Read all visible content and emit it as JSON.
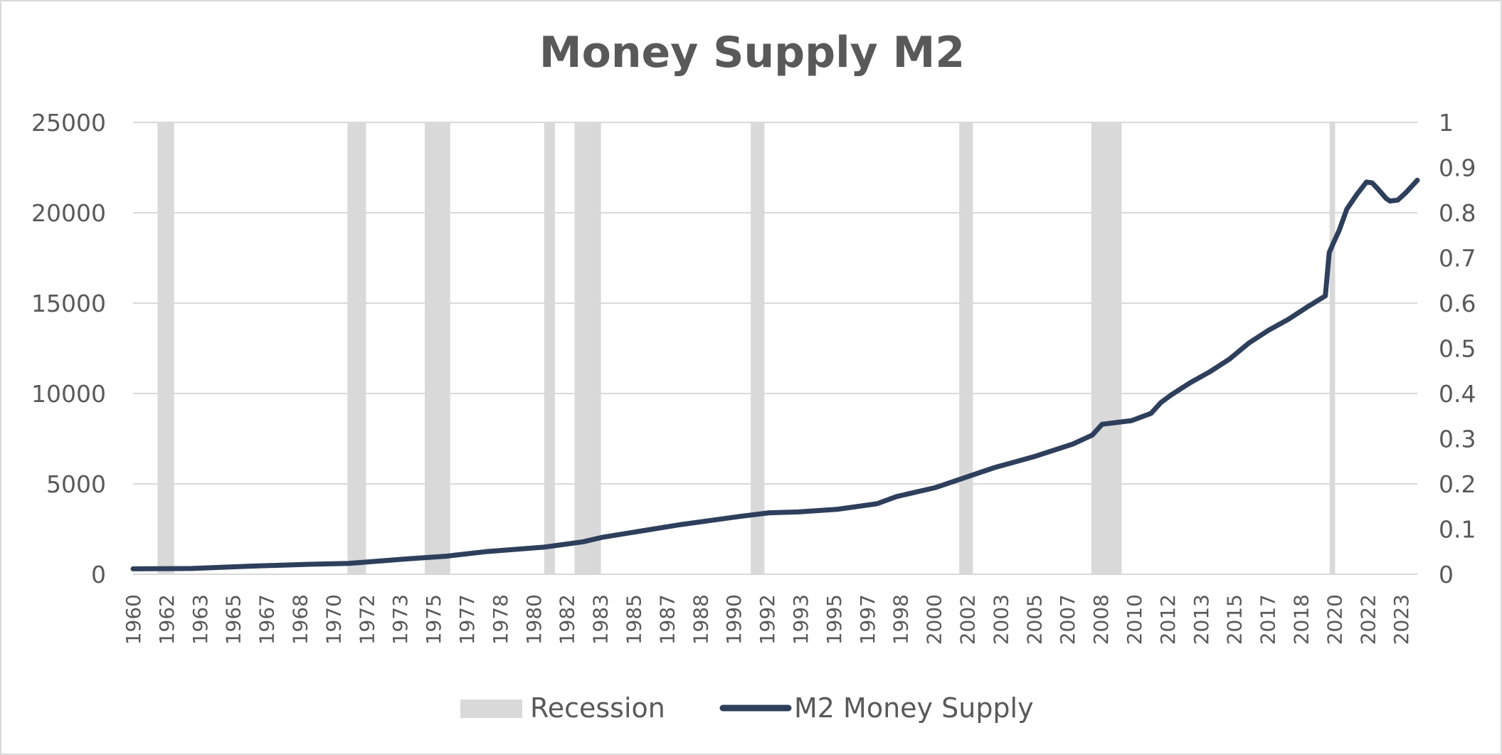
{
  "chart_data": {
    "type": "line",
    "title": "Money Supply M2",
    "xlabel": "",
    "ylabel": "",
    "x_range": [
      1959.0,
      2024.6
    ],
    "ylim": [
      0,
      25000
    ],
    "y_ticks": [
      0,
      5000,
      10000,
      15000,
      20000,
      25000
    ],
    "y2lim": [
      0,
      1
    ],
    "y2_ticks": [
      "0",
      "0.1",
      "0.2",
      "0.3",
      "0.4",
      "0.5",
      "0.6",
      "0.7",
      "0.8",
      "0.9",
      "1"
    ],
    "x_tick_labels": [
      "1960",
      "1962",
      "1963",
      "1965",
      "1967",
      "1968",
      "1970",
      "1972",
      "1973",
      "1975",
      "1977",
      "1978",
      "1980",
      "1982",
      "1983",
      "1985",
      "1987",
      "1988",
      "1990",
      "1992",
      "1993",
      "1995",
      "1997",
      "1998",
      "2000",
      "2002",
      "2003",
      "2005",
      "2007",
      "2008",
      "2010",
      "2012",
      "2013",
      "2015",
      "2017",
      "2018",
      "2020",
      "2022",
      "2023"
    ],
    "grid": true,
    "legend_position": "bottom",
    "colors": {
      "line": "#2e3f5c",
      "recession": "#d9d9d9",
      "grid": "#d9d9d9",
      "text": "#595959"
    },
    "series": [
      {
        "name": "Recession",
        "type": "area",
        "axis": "secondary",
        "periods": [
          [
            1960.25,
            1961.1
          ],
          [
            1969.95,
            1970.9
          ],
          [
            1973.9,
            1975.2
          ],
          [
            1980.0,
            1980.55
          ],
          [
            1981.55,
            1982.9
          ],
          [
            1990.55,
            1991.25
          ],
          [
            2001.2,
            2001.9
          ],
          [
            2007.95,
            2009.5
          ],
          [
            2020.12,
            2020.4
          ]
        ]
      },
      {
        "name": "M2 Money Supply",
        "type": "line",
        "axis": "primary",
        "x": [
          1959.0,
          1962,
          1965,
          1968,
          1970,
          1973,
          1975,
          1977,
          1980,
          1982,
          1983,
          1985,
          1987,
          1988,
          1990,
          1991.5,
          1993,
          1995,
          1997,
          1998,
          2000,
          2001.5,
          2003,
          2004,
          2005,
          2007,
          2008,
          2008.5,
          2010,
          2011,
          2011.5,
          2012,
          2013,
          2014,
          2015,
          2016,
          2017,
          2018,
          2019,
          2019.9,
          2020.1,
          2020.3,
          2020.6,
          2021,
          2021.5,
          2022,
          2022.3,
          2022.6,
          2023,
          2023.2,
          2023.6,
          2024,
          2024.6
        ],
        "y": [
          300,
          320,
          450,
          550,
          600,
          850,
          1000,
          1250,
          1500,
          1800,
          2050,
          2400,
          2750,
          2900,
          3200,
          3400,
          3450,
          3600,
          3900,
          4300,
          4800,
          5350,
          5900,
          6200,
          6500,
          7200,
          7700,
          8300,
          8500,
          8900,
          9500,
          9900,
          10600,
          11200,
          11900,
          12800,
          13500,
          14100,
          14800,
          15400,
          17800,
          18300,
          19000,
          20200,
          21000,
          21700,
          21650,
          21300,
          20800,
          20650,
          20700,
          21100,
          21800
        ]
      }
    ]
  }
}
